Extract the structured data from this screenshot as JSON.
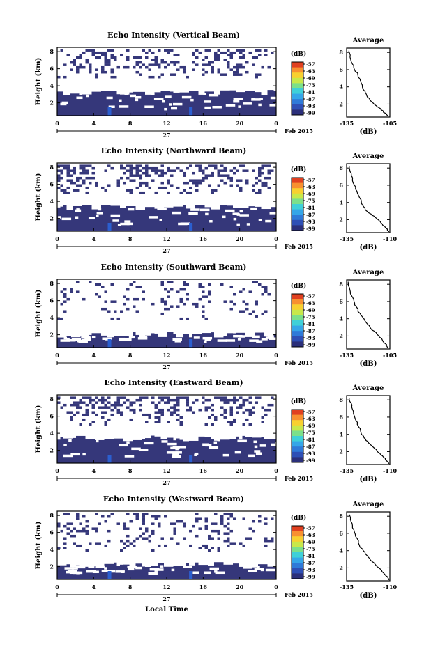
{
  "figure": {
    "xlabel": "Local Time",
    "date_label": "Feb 2015",
    "day_label": "27",
    "colorbar_unit": "(dB)",
    "colorbar_ticks": [
      "-57",
      "-63",
      "-69",
      "-75",
      "-81",
      "-87",
      "-93",
      "-99"
    ],
    "colorbar_colors": [
      "#2b2f7a",
      "#2e4fb5",
      "#2f7ad8",
      "#35a6e8",
      "#3fd0d8",
      "#7be08a",
      "#c8e84a",
      "#f8d030",
      "#f89030",
      "#e04020"
    ],
    "background_color": "#35377a",
    "strong_echo_color": "#2b5fd0"
  },
  "chart_data": [
    {
      "type": "heatmap",
      "title": "Echo Intensity (Vertical Beam)",
      "xlabel": "",
      "ylabel": "Height (km)",
      "x_ticks": [
        "0",
        "4",
        "8",
        "12",
        "16",
        "20",
        "0"
      ],
      "y_ticks": [
        "2",
        "4",
        "6",
        "8"
      ],
      "xlim": [
        0,
        24
      ],
      "ylim": [
        0.5,
        8.5
      ],
      "solid_layer_top_km": 3.2,
      "upper_patch_coverage": 0.35,
      "profile": {
        "type": "line",
        "title": "Average",
        "xlabel": "(dB)",
        "x_ticks": [
          "-135",
          "-105"
        ],
        "y_ticks": [
          "2",
          "4",
          "6",
          "8"
        ],
        "xlim": [
          -135,
          -105
        ],
        "ylim": [
          0.5,
          8.5
        ],
        "x": [
          -133.5,
          -132,
          -130,
          -127,
          -125,
          -123,
          -121,
          -118,
          -114,
          -110,
          -106
        ],
        "y": [
          8.2,
          7.2,
          6.2,
          5.4,
          4.4,
          3.6,
          3.0,
          2.3,
          1.8,
          1.2,
          0.6
        ]
      }
    },
    {
      "type": "heatmap",
      "title": "Echo Intensity (Northward Beam)",
      "xlabel": "",
      "ylabel": "Height (km)",
      "x_ticks": [
        "0",
        "4",
        "8",
        "12",
        "16",
        "20",
        "0"
      ],
      "y_ticks": [
        "2",
        "4",
        "6",
        "8"
      ],
      "xlim": [
        0,
        24
      ],
      "ylim": [
        0.5,
        8.5
      ],
      "solid_layer_top_km": 3.3,
      "upper_patch_coverage": 0.42,
      "profile": {
        "type": "line",
        "title": "Average",
        "xlabel": "(dB)",
        "x_ticks": [
          "-135",
          "-110"
        ],
        "y_ticks": [
          "2",
          "4",
          "6",
          "8"
        ],
        "xlim": [
          -135,
          -110
        ],
        "ylim": [
          0.5,
          8.5
        ],
        "x": [
          -133.5,
          -132.5,
          -131,
          -129,
          -127,
          -125,
          -123,
          -119,
          -116,
          -113,
          -110.5
        ],
        "y": [
          8.2,
          7.4,
          6.3,
          5.3,
          4.3,
          3.5,
          2.9,
          2.4,
          1.8,
          1.2,
          0.6
        ]
      }
    },
    {
      "type": "heatmap",
      "title": "Echo Intensity (Southward Beam)",
      "xlabel": "",
      "ylabel": "Height (km)",
      "x_ticks": [
        "0",
        "4",
        "8",
        "12",
        "16",
        "20",
        "0"
      ],
      "y_ticks": [
        "2",
        "4",
        "6",
        "8"
      ],
      "xlim": [
        0,
        24
      ],
      "ylim": [
        0.5,
        8.5
      ],
      "solid_layer_top_km": 2.0,
      "upper_patch_coverage": 0.18,
      "profile": {
        "type": "line",
        "title": "Average",
        "xlabel": "(dB)",
        "x_ticks": [
          "-135",
          "-105"
        ],
        "y_ticks": [
          "2",
          "4",
          "6",
          "8"
        ],
        "xlim": [
          -135,
          -105
        ],
        "ylim": [
          0.5,
          8.5
        ],
        "x": [
          -134,
          -133,
          -131,
          -129,
          -126,
          -122,
          -119,
          -115,
          -111,
          -107.5,
          -106
        ],
        "y": [
          8.3,
          7.4,
          6.4,
          5.6,
          4.6,
          3.8,
          3.0,
          2.4,
          1.7,
          1.0,
          0.6
        ]
      }
    },
    {
      "type": "heatmap",
      "title": "Echo Intensity (Eastward Beam)",
      "xlabel": "",
      "ylabel": "Height (km)",
      "x_ticks": [
        "0",
        "4",
        "8",
        "12",
        "16",
        "20",
        "0"
      ],
      "y_ticks": [
        "2",
        "4",
        "6",
        "8"
      ],
      "xlim": [
        0,
        24
      ],
      "ylim": [
        0.5,
        8.5
      ],
      "solid_layer_top_km": 3.4,
      "upper_patch_coverage": 0.35,
      "profile": {
        "type": "line",
        "title": "Average",
        "xlabel": "(dB)",
        "x_ticks": [
          "-135",
          "-110"
        ],
        "y_ticks": [
          "2",
          "4",
          "6",
          "8"
        ],
        "xlim": [
          -135,
          -110
        ],
        "ylim": [
          0.5,
          8.5
        ],
        "x": [
          -133.5,
          -132,
          -131,
          -129,
          -127,
          -125,
          -122,
          -119,
          -116,
          -113,
          -110.5
        ],
        "y": [
          8.2,
          7.4,
          6.4,
          5.4,
          4.4,
          3.6,
          3.0,
          2.4,
          1.8,
          1.2,
          0.6
        ]
      }
    },
    {
      "type": "heatmap",
      "title": "Echo Intensity (Westward Beam)",
      "xlabel": "Local Time",
      "ylabel": "Height (km)",
      "x_ticks": [
        "0",
        "4",
        "8",
        "12",
        "16",
        "20",
        "0"
      ],
      "y_ticks": [
        "2",
        "4",
        "6",
        "8"
      ],
      "xlim": [
        0,
        24
      ],
      "ylim": [
        0.5,
        8.5
      ],
      "solid_layer_top_km": 2.2,
      "upper_patch_coverage": 0.22,
      "profile": {
        "type": "line",
        "title": "Average",
        "xlabel": "(dB)",
        "x_ticks": [
          "-135",
          "-110"
        ],
        "y_ticks": [
          "2",
          "4",
          "6",
          "8"
        ],
        "xlim": [
          -135,
          -110
        ],
        "ylim": [
          0.5,
          8.5
        ],
        "x": [
          -133.5,
          -132.5,
          -131,
          -129,
          -127,
          -124,
          -121,
          -118,
          -115,
          -112,
          -110.5
        ],
        "y": [
          8.2,
          7.4,
          6.4,
          5.4,
          4.4,
          3.6,
          2.9,
          2.3,
          1.7,
          1.1,
          0.6
        ]
      }
    }
  ]
}
